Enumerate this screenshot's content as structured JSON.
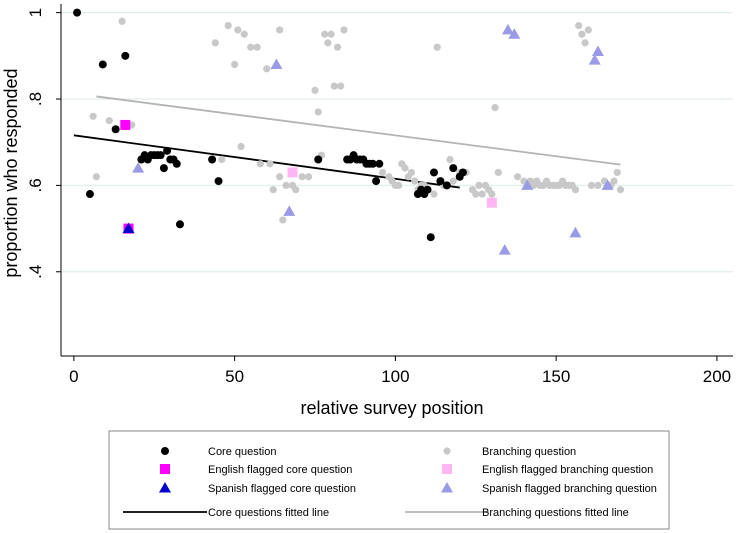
{
  "chart_data": {
    "type": "scatter",
    "xlabel": "relative survey position",
    "ylabel": "proportion who responded",
    "xlim": [
      -4,
      205
    ],
    "ylim": [
      0.205,
      1.02
    ],
    "x_ticks": [
      0,
      50,
      100,
      150,
      200
    ],
    "x_tick_labels": [
      "0",
      "50",
      "100",
      "150",
      "200"
    ],
    "y_ticks": [
      0.4,
      0.6,
      0.8,
      1.0
    ],
    "y_tick_labels": [
      ".4",
      ".6",
      ".8",
      "1"
    ],
    "grid": "horizontal",
    "series": [
      {
        "name": "Branching question",
        "key": "branching",
        "marker": "circle-small",
        "color": "#c8c8c8",
        "points": [
          [
            6,
            0.76
          ],
          [
            7,
            0.62
          ],
          [
            11,
            0.75
          ],
          [
            13,
            0.73
          ],
          [
            15,
            0.98
          ],
          [
            18,
            0.74
          ],
          [
            44,
            0.93
          ],
          [
            46,
            0.66
          ],
          [
            48,
            0.97
          ],
          [
            50,
            0.88
          ],
          [
            51,
            0.96
          ],
          [
            52,
            0.69
          ],
          [
            53,
            0.95
          ],
          [
            55,
            0.92
          ],
          [
            57,
            0.92
          ],
          [
            58,
            0.65
          ],
          [
            60,
            0.87
          ],
          [
            61,
            0.65
          ],
          [
            62,
            0.59
          ],
          [
            64,
            0.96
          ],
          [
            64,
            0.62
          ],
          [
            65,
            0.52
          ],
          [
            66,
            0.6
          ],
          [
            68,
            0.6
          ],
          [
            69,
            0.59
          ],
          [
            71,
            0.62
          ],
          [
            73,
            0.62
          ],
          [
            75,
            0.82
          ],
          [
            76,
            0.77
          ],
          [
            77,
            0.67
          ],
          [
            78,
            0.95
          ],
          [
            79,
            0.93
          ],
          [
            80,
            0.95
          ],
          [
            81,
            0.83
          ],
          [
            82,
            0.92
          ],
          [
            83,
            0.83
          ],
          [
            84,
            0.96
          ],
          [
            96,
            0.63
          ],
          [
            98,
            0.62
          ],
          [
            99,
            0.61
          ],
          [
            100,
            0.6
          ],
          [
            101,
            0.6
          ],
          [
            102,
            0.65
          ],
          [
            103,
            0.64
          ],
          [
            104,
            0.62
          ],
          [
            105,
            0.63
          ],
          [
            106,
            0.61
          ],
          [
            107,
            0.59
          ],
          [
            108,
            0.6
          ],
          [
            109,
            0.6
          ],
          [
            110,
            0.59
          ],
          [
            112,
            0.58
          ],
          [
            113,
            0.92
          ],
          [
            115,
            0.6
          ],
          [
            117,
            0.66
          ],
          [
            118,
            0.61
          ],
          [
            120,
            0.63
          ],
          [
            122,
            0.63
          ],
          [
            124,
            0.59
          ],
          [
            125,
            0.58
          ],
          [
            126,
            0.6
          ],
          [
            127,
            0.58
          ],
          [
            128,
            0.6
          ],
          [
            129,
            0.59
          ],
          [
            130,
            0.58
          ],
          [
            131,
            0.78
          ],
          [
            132,
            0.63
          ],
          [
            138,
            0.62
          ],
          [
            140,
            0.61
          ],
          [
            142,
            0.61
          ],
          [
            143,
            0.6
          ],
          [
            144,
            0.61
          ],
          [
            145,
            0.6
          ],
          [
            146,
            0.6
          ],
          [
            147,
            0.61
          ],
          [
            148,
            0.6
          ],
          [
            149,
            0.6
          ],
          [
            150,
            0.6
          ],
          [
            151,
            0.6
          ],
          [
            152,
            0.61
          ],
          [
            153,
            0.6
          ],
          [
            154,
            0.6
          ],
          [
            155,
            0.6
          ],
          [
            156,
            0.59
          ],
          [
            157,
            0.97
          ],
          [
            158,
            0.95
          ],
          [
            159,
            0.93
          ],
          [
            160,
            0.96
          ],
          [
            161,
            0.6
          ],
          [
            163,
            0.6
          ],
          [
            165,
            0.61
          ],
          [
            167,
            0.6
          ],
          [
            168,
            0.61
          ],
          [
            169,
            0.63
          ],
          [
            170,
            0.59
          ]
        ]
      },
      {
        "name": "Core question",
        "key": "core",
        "marker": "circle",
        "color": "#000000",
        "points": [
          [
            1,
            1.0
          ],
          [
            5,
            0.58
          ],
          [
            9,
            0.88
          ],
          [
            13,
            0.73
          ],
          [
            16,
            0.9
          ],
          [
            17,
            0.5
          ],
          [
            21,
            0.66
          ],
          [
            22,
            0.67
          ],
          [
            23,
            0.66
          ],
          [
            24,
            0.67
          ],
          [
            25,
            0.67
          ],
          [
            26,
            0.67
          ],
          [
            27,
            0.67
          ],
          [
            28,
            0.64
          ],
          [
            29,
            0.68
          ],
          [
            30,
            0.66
          ],
          [
            31,
            0.66
          ],
          [
            32,
            0.65
          ],
          [
            33,
            0.51
          ],
          [
            43,
            0.66
          ],
          [
            45,
            0.61
          ],
          [
            76,
            0.66
          ],
          [
            85,
            0.66
          ],
          [
            86,
            0.66
          ],
          [
            87,
            0.67
          ],
          [
            88,
            0.66
          ],
          [
            89,
            0.66
          ],
          [
            90,
            0.66
          ],
          [
            91,
            0.65
          ],
          [
            92,
            0.65
          ],
          [
            93,
            0.65
          ],
          [
            94,
            0.61
          ],
          [
            95,
            0.65
          ],
          [
            107,
            0.58
          ],
          [
            108,
            0.59
          ],
          [
            109,
            0.58
          ],
          [
            110,
            0.59
          ],
          [
            111,
            0.48
          ],
          [
            112,
            0.63
          ],
          [
            114,
            0.61
          ],
          [
            116,
            0.6
          ],
          [
            118,
            0.64
          ],
          [
            120,
            0.62
          ],
          [
            121,
            0.63
          ]
        ]
      },
      {
        "name": "English flagged core question",
        "key": "eng_core",
        "marker": "square",
        "color": "#ff00ff",
        "points": [
          [
            16,
            0.74
          ],
          [
            17,
            0.5
          ]
        ]
      },
      {
        "name": "Spanish flagged core question",
        "key": "spa_core",
        "marker": "triangle",
        "color": "#0000cc",
        "points": [
          [
            17,
            0.5
          ]
        ]
      },
      {
        "name": "English flagged branching question",
        "key": "eng_branch",
        "marker": "square",
        "color": "#ffb6f2",
        "points": [
          [
            68,
            0.63
          ],
          [
            130,
            0.56
          ]
        ]
      },
      {
        "name": "Spanish flagged branching question",
        "key": "spa_branch",
        "marker": "triangle",
        "color": "#9a9ae6",
        "points": [
          [
            20,
            0.64
          ],
          [
            63,
            0.88
          ],
          [
            67,
            0.54
          ],
          [
            134,
            0.45
          ],
          [
            135,
            0.96
          ],
          [
            137,
            0.95
          ],
          [
            141,
            0.6
          ],
          [
            156,
            0.49
          ],
          [
            162,
            0.89
          ],
          [
            163,
            0.91
          ],
          [
            166,
            0.6
          ]
        ]
      }
    ],
    "fitted_lines": [
      {
        "name": "Core questions fitted line",
        "key": "core_fit",
        "color": "#000000",
        "x": [
          0,
          120
        ],
        "y": [
          0.716,
          0.595
        ]
      },
      {
        "name": "Branching questions fitted line",
        "key": "branch_fit",
        "color": "#b4b4b4",
        "x": [
          7,
          170
        ],
        "y": [
          0.806,
          0.648
        ]
      }
    ],
    "legend": {
      "placement": "bottom",
      "items": [
        {
          "label": "Core question",
          "key": "core"
        },
        {
          "label": "Branching question",
          "key": "branching"
        },
        {
          "label": "English flagged core question",
          "key": "eng_core"
        },
        {
          "label": "English flagged branching question",
          "key": "eng_branch"
        },
        {
          "label": "Spanish flagged core question",
          "key": "spa_core"
        },
        {
          "label": "Spanish flagged branching question",
          "key": "spa_branch"
        },
        {
          "label": "Core questions fitted line",
          "key": "core_fit"
        },
        {
          "label": "Branching questions fitted line",
          "key": "branch_fit"
        }
      ]
    }
  }
}
